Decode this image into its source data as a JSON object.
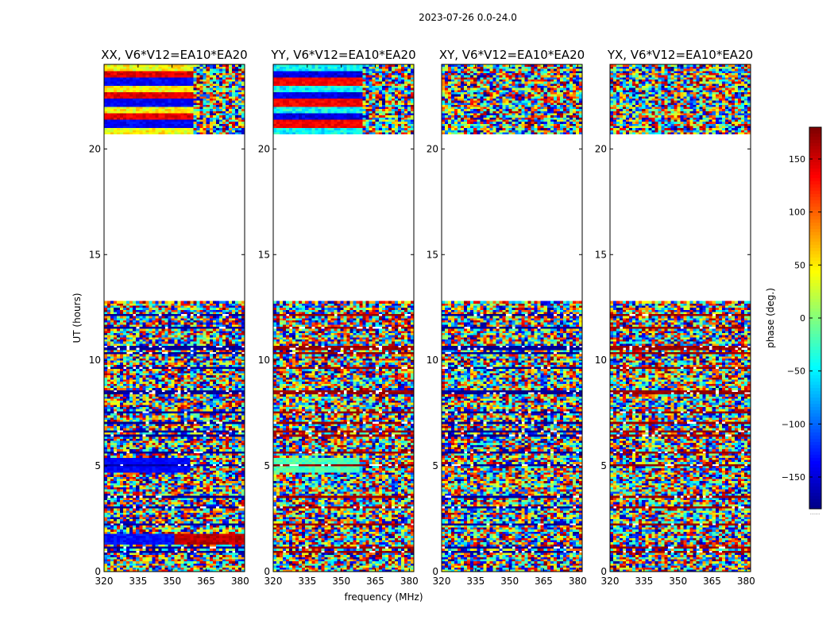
{
  "figure": {
    "suptitle": "2023-07-26 0.0-24.0"
  },
  "chart_data": {
    "type": "heatmap",
    "subplots": [
      {
        "title": "XX, V6*V12=EA10*EA20",
        "mode": "bimodal"
      },
      {
        "title": "YY, V6*V12=EA10*EA20",
        "mode": "bimodal2"
      },
      {
        "title": "XY, V6*V12=EA10*EA20",
        "mode": "noise"
      },
      {
        "title": "YX, V6*V12=EA10*EA20",
        "mode": "noise"
      }
    ],
    "xlabel": "frequency (MHz)",
    "ylabel": "UT (hours)",
    "xlim": [
      320,
      382
    ],
    "ylim": [
      0,
      24
    ],
    "xticks": [
      320,
      335,
      350,
      365,
      380
    ],
    "yticks": [
      0,
      5,
      10,
      15,
      20
    ],
    "data_gaps_ut": [
      [
        12.75,
        20.65
      ]
    ],
    "colorbar": {
      "label": "phase (deg.)",
      "range": [
        -180,
        180
      ],
      "ticks": [
        150,
        100,
        50,
        0,
        -50,
        -100,
        -150
      ],
      "tick_labels": [
        "150",
        "100",
        "50",
        "0",
        "−50",
        "−100",
        "−150"
      ],
      "colormap": "jet",
      "footer": "....."
    }
  }
}
